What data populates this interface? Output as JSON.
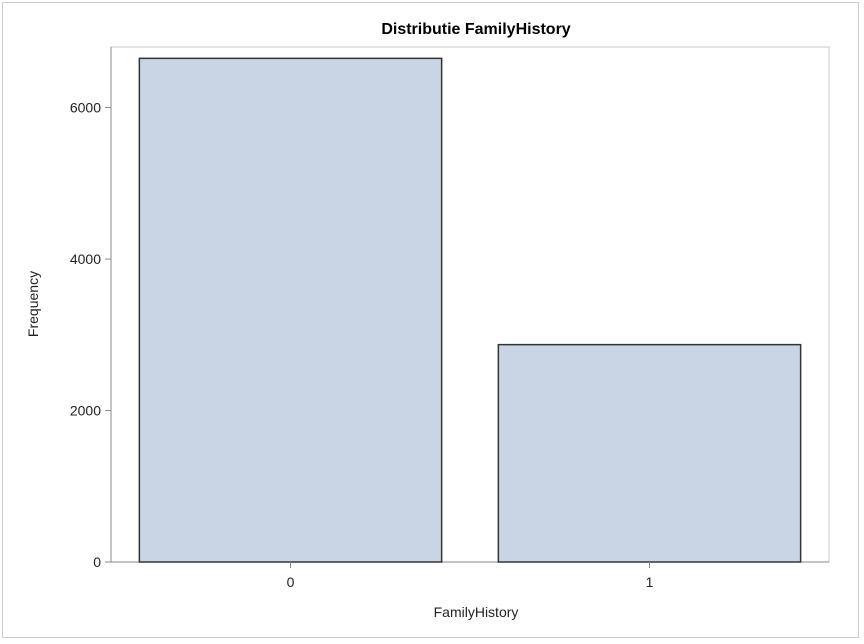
{
  "chart_data": {
    "type": "bar",
    "title": "Distributie FamilyHistory",
    "xlabel": "FamilyHistory",
    "ylabel": "Frequency",
    "categories": [
      "0",
      "1"
    ],
    "values": [
      6650,
      2870
    ],
    "ylim": [
      0,
      6800
    ],
    "yticks": [
      0,
      2000,
      4000,
      6000
    ],
    "grid": false,
    "colors": {
      "bar_fill": "#c9d5e5",
      "bar_stroke": "#333333",
      "axis": "#888888"
    }
  }
}
